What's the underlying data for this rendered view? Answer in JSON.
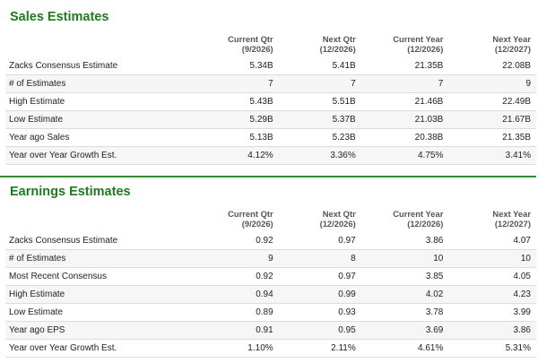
{
  "sales": {
    "title": "Sales Estimates",
    "headers": [
      {
        "line1": "Current Qtr",
        "line2": "(9/2026)"
      },
      {
        "line1": "Next Qtr",
        "line2": "(12/2026)"
      },
      {
        "line1": "Current Year",
        "line2": "(12/2026)"
      },
      {
        "line1": "Next Year",
        "line2": "(12/2027)"
      }
    ],
    "rows": [
      {
        "label": "Zacks Consensus Estimate",
        "values": [
          "5.34B",
          "5.41B",
          "21.35B",
          "22.08B"
        ]
      },
      {
        "label": "# of Estimates",
        "values": [
          "7",
          "7",
          "7",
          "9"
        ]
      },
      {
        "label": "High Estimate",
        "values": [
          "5.43B",
          "5.51B",
          "21.46B",
          "22.49B"
        ]
      },
      {
        "label": "Low Estimate",
        "values": [
          "5.29B",
          "5.37B",
          "21.03B",
          "21.67B"
        ]
      },
      {
        "label": "Year ago Sales",
        "values": [
          "5.13B",
          "5.23B",
          "20.38B",
          "21.35B"
        ]
      },
      {
        "label": "Year over Year Growth Est.",
        "values": [
          "4.12%",
          "3.36%",
          "4.75%",
          "3.41%"
        ]
      }
    ]
  },
  "earnings": {
    "title": "Earnings Estimates",
    "headers": [
      {
        "line1": "Current Qtr",
        "line2": "(9/2026)"
      },
      {
        "line1": "Next Qtr",
        "line2": "(12/2026)"
      },
      {
        "line1": "Current Year",
        "line2": "(12/2026)"
      },
      {
        "line1": "Next Year",
        "line2": "(12/2027)"
      }
    ],
    "rows": [
      {
        "label": "Zacks Consensus Estimate",
        "values": [
          "0.92",
          "0.97",
          "3.86",
          "4.07"
        ]
      },
      {
        "label": "# of Estimates",
        "values": [
          "9",
          "8",
          "10",
          "10"
        ]
      },
      {
        "label": "Most Recent Consensus",
        "values": [
          "0.92",
          "0.97",
          "3.85",
          "4.05"
        ]
      },
      {
        "label": "High Estimate",
        "values": [
          "0.94",
          "0.99",
          "4.02",
          "4.23"
        ]
      },
      {
        "label": "Low Estimate",
        "values": [
          "0.89",
          "0.93",
          "3.78",
          "3.99"
        ]
      },
      {
        "label": "Year ago EPS",
        "values": [
          "0.91",
          "0.95",
          "3.69",
          "3.86"
        ]
      },
      {
        "label": "Year over Year Growth Est.",
        "values": [
          "1.10%",
          "2.11%",
          "4.61%",
          "5.31%"
        ]
      }
    ]
  }
}
